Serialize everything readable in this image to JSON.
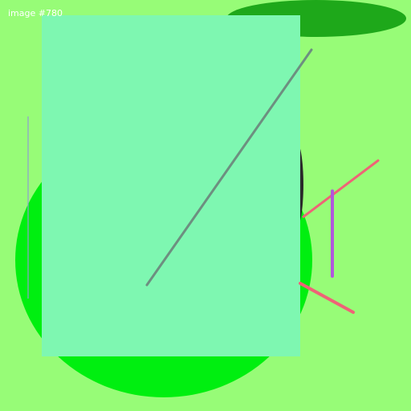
{
  "caption": "image #780",
  "colors": {
    "background": "#97fc77",
    "ellipse_top": "#1ea81a",
    "circle": "#00ef10",
    "dark_arc": "#2a2a2a",
    "rectangle": "#7ef7b1",
    "diagonal_line": "#6d8f80",
    "thin_vertical_line": "#8f9ed0",
    "pink_lines": "#ef6377",
    "purple_line": "#b157dc"
  },
  "shapes": [
    "background",
    "ellipse-top-right",
    "circle",
    "dark-arc",
    "rectangle",
    "diagonal-line",
    "thin-vertical-line",
    "pink-line-upper",
    "pink-line-lower",
    "purple-line"
  ]
}
